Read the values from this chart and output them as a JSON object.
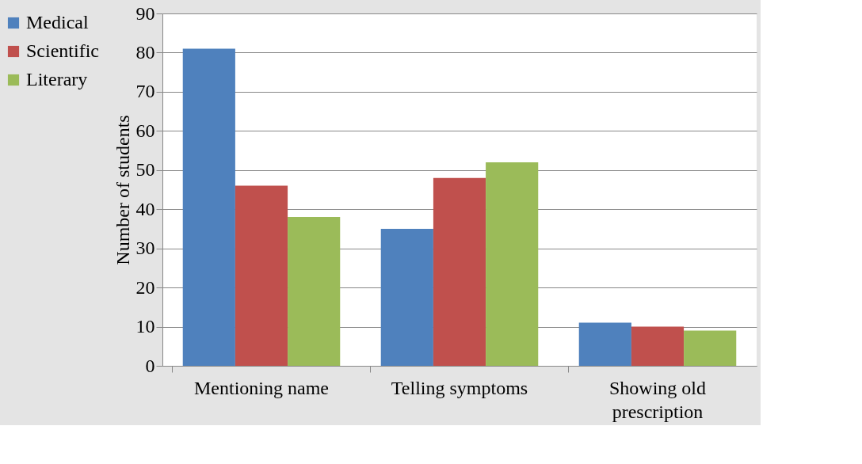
{
  "chart_data": {
    "type": "bar",
    "ylabel": "Number of students",
    "categories": [
      "Mentioning name",
      "Telling symptoms",
      "Showing old prescription"
    ],
    "series": [
      {
        "name": "Medical",
        "color": "#4f81bd",
        "values": [
          81,
          35,
          11
        ]
      },
      {
        "name": "Scientific",
        "color": "#c0504d",
        "values": [
          46,
          48,
          10
        ]
      },
      {
        "name": "Literary",
        "color": "#9bbb59",
        "values": [
          38,
          52,
          9
        ]
      }
    ],
    "ylim": [
      0,
      90
    ],
    "yticks": [
      0,
      10,
      20,
      30,
      40,
      50,
      60,
      70,
      80,
      90
    ],
    "grid": "y",
    "legend": "left"
  }
}
